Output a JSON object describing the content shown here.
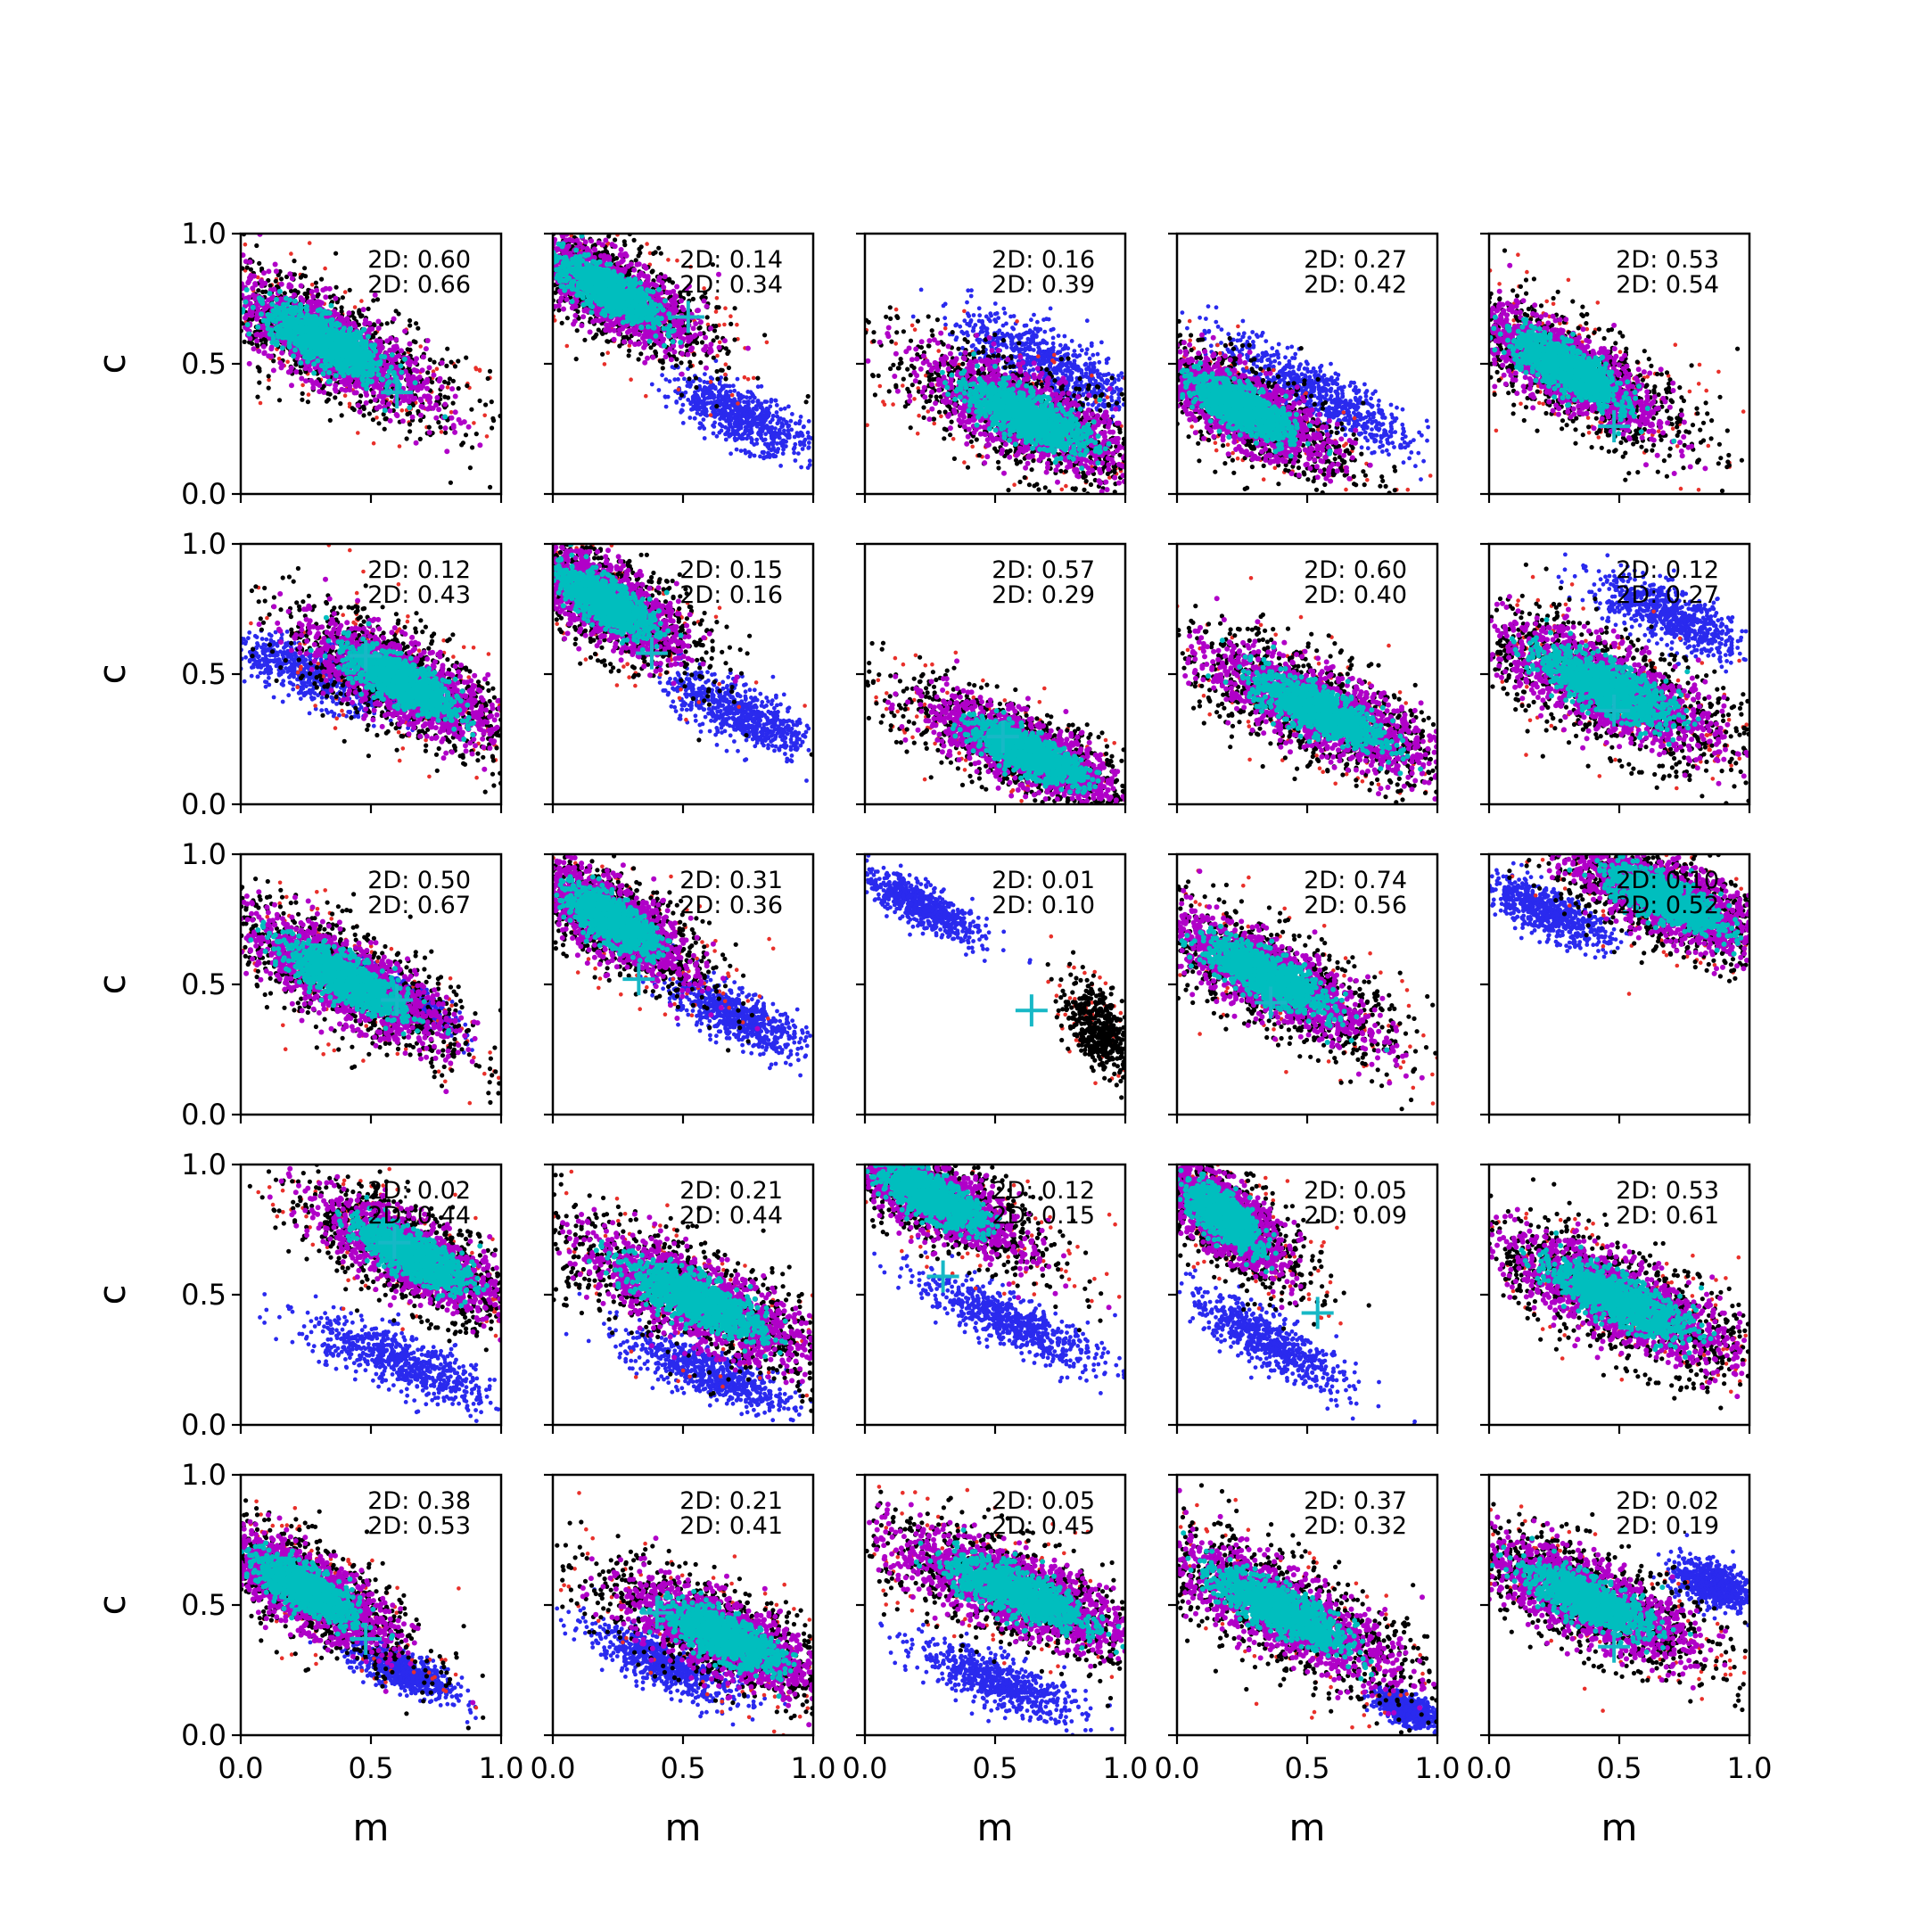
{
  "chart_data": {
    "type": "scatter",
    "layout": "5x5 grid of subplots",
    "xlabel": "m",
    "ylabel": "c",
    "xlim": [
      0,
      1
    ],
    "ylim": [
      0,
      1
    ],
    "xticks": [
      "0.0",
      "0.5",
      "1.0"
    ],
    "yticks": [
      "0.0",
      "0.5",
      "1.0"
    ],
    "grid": false,
    "legend": "none",
    "colors": {
      "outer": "#e8302a",
      "black": "#000000",
      "blue": "#2a2aee",
      "magenta": "#b000c8",
      "cyan": "#00bebe",
      "marker": "#17b8c6"
    },
    "panels": [
      {
        "row": 0,
        "col": 0,
        "labels": [
          "2D: 0.60",
          "2D: 0.66"
        ],
        "marker": [
          0.6,
          0.39
        ],
        "main": {
          "x": 0.33,
          "y": 0.58,
          "rx": 0.52,
          "ry": 0.17,
          "angle": -28
        },
        "blue": null
      },
      {
        "row": 0,
        "col": 1,
        "labels": [
          "2D: 0.14",
          "2D: 0.34"
        ],
        "marker": [
          0.52,
          0.68
        ],
        "main": {
          "x": 0.22,
          "y": 0.78,
          "rx": 0.42,
          "ry": 0.15,
          "angle": -30
        },
        "blue": {
          "x": 0.72,
          "y": 0.3,
          "rx": 0.28,
          "ry": 0.1,
          "angle": -25
        }
      },
      {
        "row": 0,
        "col": 2,
        "labels": [
          "2D: 0.16",
          "2D: 0.39"
        ],
        "marker": null,
        "main": {
          "x": 0.62,
          "y": 0.3,
          "rx": 0.5,
          "ry": 0.17,
          "angle": -25
        },
        "blue": {
          "x": 0.7,
          "y": 0.5,
          "rx": 0.38,
          "ry": 0.12,
          "angle": -25
        }
      },
      {
        "row": 0,
        "col": 3,
        "labels": [
          "2D: 0.27",
          "2D: 0.42"
        ],
        "marker": null,
        "main": {
          "x": 0.25,
          "y": 0.33,
          "rx": 0.44,
          "ry": 0.15,
          "angle": -28
        },
        "blue": {
          "x": 0.55,
          "y": 0.38,
          "rx": 0.42,
          "ry": 0.1,
          "angle": -30
        }
      },
      {
        "row": 0,
        "col": 4,
        "labels": [
          "2D: 0.53",
          "2D: 0.54"
        ],
        "marker": [
          0.48,
          0.26
        ],
        "main": {
          "x": 0.3,
          "y": 0.48,
          "rx": 0.48,
          "ry": 0.16,
          "angle": -30
        },
        "blue": null
      },
      {
        "row": 1,
        "col": 0,
        "labels": [
          "2D: 0.12",
          "2D: 0.43"
        ],
        "marker": [
          0.48,
          0.57
        ],
        "main": {
          "x": 0.62,
          "y": 0.47,
          "rx": 0.46,
          "ry": 0.16,
          "angle": -28
        },
        "blue": {
          "x": 0.28,
          "y": 0.5,
          "rx": 0.36,
          "ry": 0.1,
          "angle": -20
        }
      },
      {
        "row": 1,
        "col": 1,
        "labels": [
          "2D: 0.15",
          "2D: 0.16"
        ],
        "marker": [
          0.38,
          0.58
        ],
        "main": {
          "x": 0.2,
          "y": 0.78,
          "rx": 0.4,
          "ry": 0.15,
          "angle": -32
        },
        "blue": {
          "x": 0.72,
          "y": 0.35,
          "rx": 0.3,
          "ry": 0.1,
          "angle": -25
        }
      },
      {
        "row": 1,
        "col": 2,
        "labels": [
          "2D: 0.57",
          "2D: 0.29"
        ],
        "marker": [
          0.53,
          0.26
        ],
        "main": {
          "x": 0.62,
          "y": 0.2,
          "rx": 0.48,
          "ry": 0.14,
          "angle": -25
        },
        "blue": null
      },
      {
        "row": 1,
        "col": 3,
        "labels": [
          "2D: 0.60",
          "2D: 0.40"
        ],
        "marker": null,
        "main": {
          "x": 0.55,
          "y": 0.36,
          "rx": 0.56,
          "ry": 0.17,
          "angle": -25
        },
        "blue": null
      },
      {
        "row": 1,
        "col": 4,
        "labels": [
          "2D: 0.12",
          "2D: 0.27"
        ],
        "marker": [
          0.48,
          0.36
        ],
        "main": {
          "x": 0.45,
          "y": 0.45,
          "rx": 0.56,
          "ry": 0.18,
          "angle": -25
        },
        "blue": {
          "x": 0.7,
          "y": 0.72,
          "rx": 0.32,
          "ry": 0.1,
          "angle": -25
        }
      },
      {
        "row": 2,
        "col": 0,
        "labels": [
          "2D: 0.50",
          "2D: 0.67"
        ],
        "marker": [
          0.6,
          0.44
        ],
        "main": {
          "x": 0.4,
          "y": 0.52,
          "rx": 0.52,
          "ry": 0.16,
          "angle": -28
        },
        "blue": {
          "x": 0.62,
          "y": 0.45,
          "rx": 0.22,
          "ry": 0.06,
          "angle": -30
        }
      },
      {
        "row": 2,
        "col": 1,
        "labels": [
          "2D: 0.31",
          "2D: 0.36"
        ],
        "marker": [
          0.33,
          0.52
        ],
        "main": {
          "x": 0.22,
          "y": 0.75,
          "rx": 0.4,
          "ry": 0.15,
          "angle": -32
        },
        "blue": {
          "x": 0.7,
          "y": 0.38,
          "rx": 0.28,
          "ry": 0.09,
          "angle": -25
        }
      },
      {
        "row": 2,
        "col": 2,
        "labels": [
          "2D: 0.01",
          "2D: 0.10"
        ],
        "marker": [
          0.64,
          0.4
        ],
        "main": null,
        "blue": {
          "x": 0.22,
          "y": 0.8,
          "rx": 0.26,
          "ry": 0.07,
          "angle": -28
        },
        "black": {
          "x": 0.9,
          "y": 0.33,
          "rx": 0.2,
          "ry": 0.1,
          "angle": -60
        }
      },
      {
        "row": 2,
        "col": 3,
        "labels": [
          "2D: 0.74",
          "2D: 0.56"
        ],
        "marker": [
          0.36,
          0.43
        ],
        "main": {
          "x": 0.35,
          "y": 0.53,
          "rx": 0.52,
          "ry": 0.16,
          "angle": -28
        },
        "blue": null
      },
      {
        "row": 2,
        "col": 4,
        "labels": [
          "2D: 0.10",
          "2D: 0.52"
        ],
        "marker": null,
        "main": {
          "x": 0.68,
          "y": 0.83,
          "rx": 0.48,
          "ry": 0.16,
          "angle": -25
        },
        "blue": {
          "x": 0.22,
          "y": 0.78,
          "rx": 0.26,
          "ry": 0.08,
          "angle": -25
        }
      },
      {
        "row": 3,
        "col": 0,
        "labels": [
          "2D: 0.02",
          "2D: 0.44"
        ],
        "marker": [
          0.59,
          0.7
        ],
        "main": {
          "x": 0.66,
          "y": 0.65,
          "rx": 0.46,
          "ry": 0.15,
          "angle": -28
        },
        "blue": {
          "x": 0.62,
          "y": 0.24,
          "rx": 0.4,
          "ry": 0.1,
          "angle": -22
        }
      },
      {
        "row": 3,
        "col": 1,
        "labels": [
          "2D: 0.21",
          "2D: 0.44"
        ],
        "marker": null,
        "main": {
          "x": 0.55,
          "y": 0.48,
          "rx": 0.58,
          "ry": 0.17,
          "angle": -25
        },
        "blue": {
          "x": 0.6,
          "y": 0.2,
          "rx": 0.34,
          "ry": 0.09,
          "angle": -22
        }
      },
      {
        "row": 3,
        "col": 2,
        "labels": [
          "2D: 0.12",
          "2D: 0.15"
        ],
        "marker": [
          0.3,
          0.57
        ],
        "main": {
          "x": 0.25,
          "y": 0.88,
          "rx": 0.46,
          "ry": 0.15,
          "angle": -28
        },
        "blue": {
          "x": 0.55,
          "y": 0.4,
          "rx": 0.38,
          "ry": 0.09,
          "angle": -25
        }
      },
      {
        "row": 3,
        "col": 3,
        "labels": [
          "2D: 0.05",
          "2D: 0.09"
        ],
        "marker": [
          0.54,
          0.43
        ],
        "main": {
          "x": 0.18,
          "y": 0.8,
          "rx": 0.34,
          "ry": 0.14,
          "angle": -40
        },
        "blue": {
          "x": 0.35,
          "y": 0.32,
          "rx": 0.36,
          "ry": 0.09,
          "angle": -30
        }
      },
      {
        "row": 3,
        "col": 4,
        "labels": [
          "2D: 0.53",
          "2D: 0.61"
        ],
        "marker": null,
        "main": {
          "x": 0.5,
          "y": 0.48,
          "rx": 0.58,
          "ry": 0.17,
          "angle": -25
        },
        "blue": null
      },
      {
        "row": 4,
        "col": 0,
        "labels": [
          "2D: 0.38",
          "2D: 0.53"
        ],
        "marker": [
          0.48,
          0.37
        ],
        "main": {
          "x": 0.25,
          "y": 0.56,
          "rx": 0.44,
          "ry": 0.15,
          "angle": -30
        },
        "blue": {
          "x": 0.62,
          "y": 0.25,
          "rx": 0.22,
          "ry": 0.07,
          "angle": -25
        }
      },
      {
        "row": 4,
        "col": 1,
        "labels": [
          "2D: 0.21",
          "2D: 0.41"
        ],
        "marker": [
          0.4,
          0.47
        ],
        "main": {
          "x": 0.65,
          "y": 0.38,
          "rx": 0.48,
          "ry": 0.16,
          "angle": -25
        },
        "blue": {
          "x": 0.42,
          "y": 0.28,
          "rx": 0.3,
          "ry": 0.09,
          "angle": -25
        }
      },
      {
        "row": 4,
        "col": 2,
        "labels": [
          "2D: 0.05",
          "2D: 0.45"
        ],
        "marker": null,
        "main": {
          "x": 0.58,
          "y": 0.55,
          "rx": 0.58,
          "ry": 0.17,
          "angle": -22
        },
        "blue": {
          "x": 0.52,
          "y": 0.2,
          "rx": 0.34,
          "ry": 0.09,
          "angle": -22
        }
      },
      {
        "row": 4,
        "col": 3,
        "labels": [
          "2D: 0.37",
          "2D: 0.32"
        ],
        "marker": null,
        "main": {
          "x": 0.4,
          "y": 0.48,
          "rx": 0.58,
          "ry": 0.17,
          "angle": -28
        },
        "blue": {
          "x": 0.88,
          "y": 0.1,
          "rx": 0.12,
          "ry": 0.05,
          "angle": -25
        }
      },
      {
        "row": 4,
        "col": 4,
        "labels": [
          "2D: 0.02",
          "2D: 0.19"
        ],
        "marker": [
          0.48,
          0.34
        ],
        "main": {
          "x": 0.38,
          "y": 0.52,
          "rx": 0.52,
          "ry": 0.16,
          "angle": -25
        },
        "blue": {
          "x": 0.86,
          "y": 0.58,
          "rx": 0.16,
          "ry": 0.08,
          "angle": -20
        }
      }
    ]
  }
}
